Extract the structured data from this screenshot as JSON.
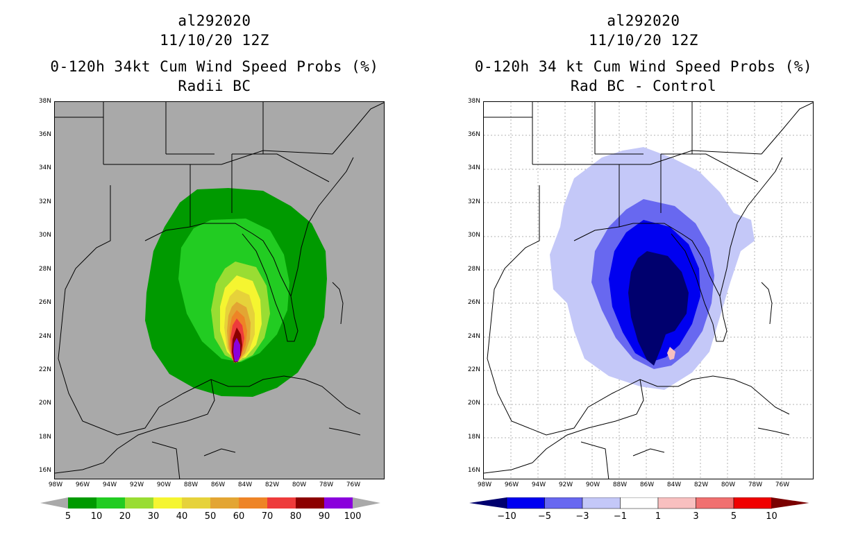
{
  "panels": [
    {
      "storm": "al292020",
      "time": "11/10/20 12Z",
      "product": "0-120h 34kt Cum Wind Speed Probs (%)",
      "subtitle": "Radii BC",
      "background": "#a9a9a9",
      "colorbar": {
        "labels": [
          "5",
          "10",
          "20",
          "30",
          "40",
          "50",
          "60",
          "70",
          "80",
          "90",
          "100"
        ],
        "colors": [
          "#a9a9a9",
          "#009a00",
          "#22cc22",
          "#99dd33",
          "#f5f530",
          "#e6d23a",
          "#e3a533",
          "#ee8426",
          "#ee3b3b",
          "#8c0000",
          "#8a00dc",
          "#a9a9a9"
        ]
      }
    },
    {
      "storm": "al292020",
      "time": "11/10/20 12Z",
      "product": "0-120h 34 kt Cum Wind Speed Probs (%)",
      "subtitle": "Rad BC - Control",
      "background": "#ffffff",
      "colorbar": {
        "labels": [
          "−10",
          "−5",
          "−3",
          "−1",
          "1",
          "3",
          "5",
          "10"
        ],
        "colors": [
          "#00006e",
          "#0000f0",
          "#6868f0",
          "#c4c8f8",
          "#ffffff",
          "#f8c0c0",
          "#f07070",
          "#f00000",
          "#7a0000"
        ]
      }
    }
  ],
  "axes": {
    "lat_labels": [
      "38N",
      "36N",
      "34N",
      "32N",
      "30N",
      "28N",
      "26N",
      "24N",
      "22N",
      "20N",
      "18N",
      "16N"
    ],
    "lon_labels": [
      "98W",
      "96W",
      "94W",
      "92W",
      "90W",
      "88W",
      "86W",
      "84W",
      "82W",
      "80W",
      "78W",
      "76W"
    ]
  }
}
